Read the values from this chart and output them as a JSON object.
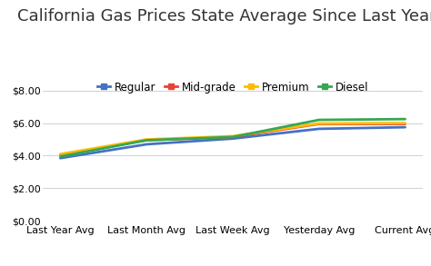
{
  "title": "California Gas Prices State Average Since Last Year",
  "categories": [
    "Last Year Avg",
    "Last Month Avg",
    "Last Week Avg",
    "Yesterday Avg",
    "Current Avg"
  ],
  "series": {
    "Regular": [
      3.85,
      4.7,
      5.05,
      5.65,
      5.75
    ],
    "Mid-grade": [
      4.05,
      4.95,
      5.15,
      5.95,
      5.95
    ],
    "Premium": [
      4.1,
      5.0,
      5.2,
      5.98,
      6.0
    ],
    "Diesel": [
      3.95,
      4.95,
      5.15,
      6.2,
      6.25
    ]
  },
  "colors": {
    "Regular": "#4472C4",
    "Mid-grade": "#EA4335",
    "Premium": "#FBBC04",
    "Diesel": "#34A853"
  },
  "ylim": [
    0.0,
    8.5
  ],
  "yticks": [
    0.0,
    2.0,
    4.0,
    6.0,
    8.0
  ],
  "background_color": "#ffffff",
  "title_fontsize": 13,
  "tick_fontsize": 8,
  "line_width": 2.0
}
